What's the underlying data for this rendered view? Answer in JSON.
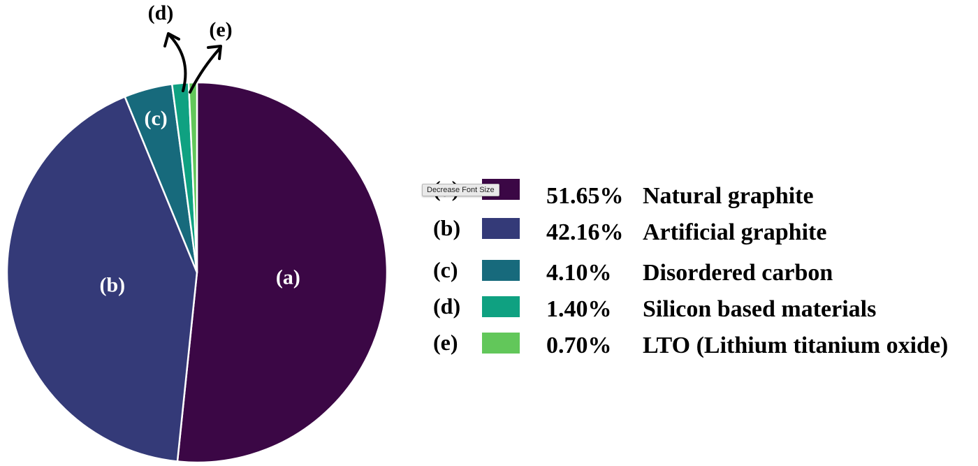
{
  "chart_data": {
    "type": "pie",
    "title": "",
    "start_angle_deg": 0,
    "direction": "clockwise",
    "slices": [
      {
        "label": "(a)",
        "name": "Natural graphite",
        "value": 51.65,
        "pct_label": "51.65%",
        "color": "#3b0745"
      },
      {
        "label": "(b)",
        "name": "Artificial graphite",
        "value": 42.16,
        "pct_label": "42.16%",
        "color": "#343a78"
      },
      {
        "label": "(c)",
        "name": "Disordered carbon",
        "value": 4.1,
        "pct_label": "4.10%",
        "color": "#176a7c"
      },
      {
        "label": "(d)",
        "name": "Silicon based materials",
        "value": 1.4,
        "pct_label": "1.40%",
        "color": "#0fa181"
      },
      {
        "label": "(e)",
        "name": "LTO (Lithium titanium oxide)",
        "value": 0.7,
        "pct_label": "0.70%",
        "color": "#62c75a"
      }
    ],
    "callouts": [
      "(d)",
      "(e)"
    ],
    "legend_position": "right"
  },
  "tooltip": {
    "text": "Decrease Font Size"
  }
}
